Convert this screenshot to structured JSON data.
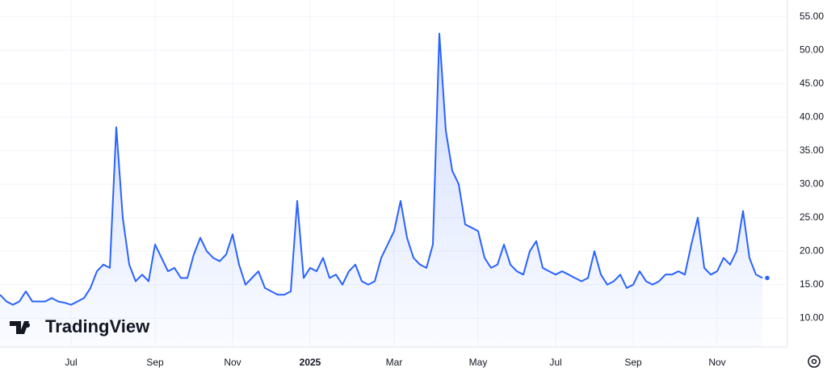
{
  "chart_data": {
    "type": "line",
    "watermark": "TradingView",
    "color": "#2962ff",
    "grid": true,
    "categories": [
      null,
      null,
      null,
      null,
      null,
      null,
      null,
      null,
      null,
      null,
      null,
      "Jul",
      null,
      null,
      null,
      null,
      null,
      null,
      null,
      null,
      null,
      null,
      null,
      null,
      "Sep",
      null,
      null,
      null,
      null,
      null,
      null,
      null,
      null,
      null,
      null,
      null,
      "Nov",
      null,
      null,
      null,
      null,
      null,
      null,
      null,
      null,
      null,
      null,
      null,
      "2025",
      null,
      null,
      null,
      null,
      null,
      null,
      null,
      null,
      null,
      null,
      null,
      null,
      "Mar",
      null,
      null,
      null,
      null,
      null,
      null,
      null,
      null,
      null,
      null,
      null,
      null,
      "May",
      null,
      null,
      null,
      null,
      null,
      null,
      null,
      null,
      null,
      null,
      null,
      "Jul",
      null,
      null,
      null,
      null,
      null,
      null,
      null,
      null,
      null,
      null,
      null,
      "Sep",
      null,
      null,
      null,
      null,
      null,
      null,
      null,
      null,
      null,
      null,
      null,
      null,
      "Nov",
      null,
      null,
      null,
      null,
      null,
      null,
      null
    ],
    "values": [
      13.5,
      12.5,
      12,
      12.5,
      14,
      12.5,
      12.5,
      12.5,
      13,
      12.5,
      12.3,
      12,
      12.5,
      13,
      14.5,
      17,
      18,
      17.5,
      38.5,
      25,
      18,
      15.5,
      16.5,
      15.5,
      21,
      19,
      17,
      17.5,
      16,
      16,
      19.5,
      22,
      20,
      19,
      18.5,
      19.5,
      22.5,
      18,
      15,
      16,
      17,
      14.5,
      14,
      13.5,
      13.5,
      14,
      27.5,
      16,
      17.5,
      17,
      19,
      16,
      16.5,
      15,
      17,
      18,
      15.5,
      15,
      15.5,
      19,
      21,
      23,
      27.5,
      22,
      19,
      18,
      17.5,
      21,
      52.5,
      38,
      32,
      30,
      24,
      23.5,
      23,
      19,
      17.5,
      18,
      21,
      18,
      17,
      16.5,
      20,
      21.5,
      17.5,
      17,
      16.5,
      17,
      16.5,
      16,
      15.5,
      16,
      20,
      16.5,
      15,
      15.5,
      16.5,
      14.5,
      15,
      17,
      15.5,
      15,
      15.5,
      16.5,
      16.5,
      17,
      16.5,
      21,
      25,
      17.5,
      16.5,
      17,
      19,
      18,
      20,
      26,
      19,
      16.5,
      16
    ],
    "ylim": [
      5.7,
      57.5
    ],
    "yticks": [
      {
        "value": 10,
        "label": "10.00"
      },
      {
        "value": 15,
        "label": "15.00"
      },
      {
        "value": 20,
        "label": "20.00"
      },
      {
        "value": 25,
        "label": "25.00"
      },
      {
        "value": 30,
        "label": "30.00"
      },
      {
        "value": 35,
        "label": "35.00"
      },
      {
        "value": 40,
        "label": "40.00"
      },
      {
        "value": 45,
        "label": "45.00"
      },
      {
        "value": 50,
        "label": "50.00"
      },
      {
        "value": 55,
        "label": "55.00"
      }
    ]
  }
}
